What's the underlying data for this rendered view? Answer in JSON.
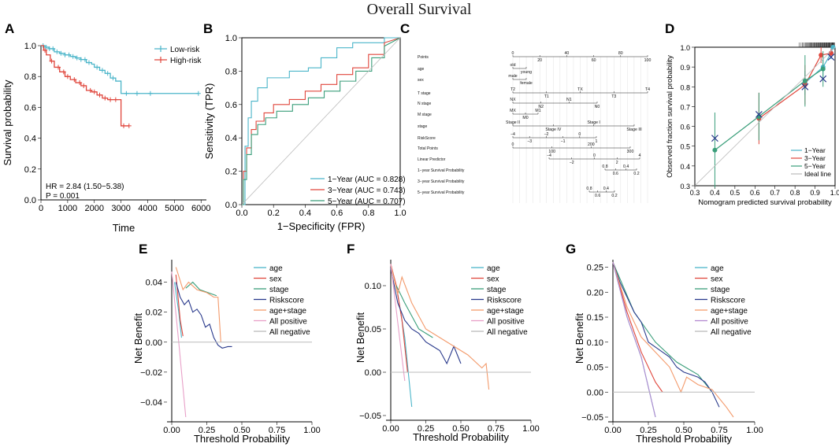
{
  "figure_title": "Overall Survival",
  "panels": {
    "A": "A",
    "B": "B",
    "C": "C",
    "D": "D",
    "E": "E",
    "F": "F",
    "G": "G"
  },
  "chart_data": [
    {
      "id": "A",
      "type": "line",
      "subtype": "kaplan-meier",
      "xlabel": "Time",
      "ylabel": "Survival probability",
      "xlim": [
        0,
        6200
      ],
      "ylim": [
        0,
        1.0
      ],
      "xticks": [
        0,
        1000,
        2000,
        3000,
        4000,
        5000,
        6000
      ],
      "yticks": [
        0.0,
        0.2,
        0.4,
        0.6,
        0.8,
        1.0
      ],
      "annotations": [
        "HR = 2.84 (1.50−5.38)",
        "P = 0.001"
      ],
      "series": [
        {
          "name": "Low-risk",
          "color": "#4bb5c9",
          "x": [
            0,
            150,
            300,
            500,
            700,
            900,
            1100,
            1300,
            1500,
            1700,
            1900,
            2000,
            2200,
            2400,
            2600,
            2800,
            3000,
            3500,
            4000,
            5900
          ],
          "y": [
            1.0,
            0.99,
            0.98,
            0.96,
            0.95,
            0.94,
            0.93,
            0.92,
            0.91,
            0.89,
            0.88,
            0.86,
            0.84,
            0.82,
            0.79,
            0.77,
            0.69,
            0.69,
            0.69,
            0.69
          ],
          "censor_x": [
            80,
            200,
            320,
            450,
            600,
            750,
            900,
            1050,
            1200,
            1350,
            1500,
            1650,
            1800,
            2100,
            2300,
            2500,
            2700,
            3200,
            3600,
            4100,
            5900
          ]
        },
        {
          "name": "High-risk",
          "color": "#e0463c",
          "x": [
            0,
            100,
            200,
            350,
            500,
            700,
            900,
            1100,
            1300,
            1500,
            1700,
            1900,
            2100,
            2300,
            2500,
            2700,
            2900,
            3000,
            3300
          ],
          "y": [
            1.0,
            0.97,
            0.94,
            0.9,
            0.86,
            0.83,
            0.8,
            0.78,
            0.76,
            0.74,
            0.71,
            0.7,
            0.68,
            0.66,
            0.65,
            0.65,
            0.65,
            0.48,
            0.48
          ],
          "censor_x": [
            150,
            400,
            650,
            850,
            1000,
            1250,
            1450,
            1600,
            1850,
            2000,
            2200,
            2400,
            2600,
            2800,
            3100,
            3300
          ]
        }
      ]
    },
    {
      "id": "B",
      "type": "line",
      "subtype": "roc",
      "xlabel": "1−Specificity (FPR)",
      "ylabel": "Sensitivity (TPR)",
      "xlim": [
        0,
        1
      ],
      "ylim": [
        0,
        1
      ],
      "xticks": [
        0.0,
        0.2,
        0.4,
        0.6,
        0.8,
        1.0
      ],
      "yticks": [
        0.0,
        0.2,
        0.4,
        0.6,
        0.8,
        1.0
      ],
      "series": [
        {
          "name": "1−Year (AUC = 0.828)",
          "color": "#4bb5c9",
          "x": [
            0,
            0.02,
            0.02,
            0.04,
            0.04,
            0.06,
            0.06,
            0.1,
            0.1,
            0.16,
            0.16,
            0.3,
            0.3,
            0.42,
            0.42,
            0.5,
            0.5,
            0.6,
            0.6,
            0.7,
            0.7,
            0.9,
            0.9,
            1.0
          ],
          "y": [
            0,
            0,
            0.35,
            0.35,
            0.52,
            0.52,
            0.62,
            0.62,
            0.7,
            0.7,
            0.76,
            0.76,
            0.8,
            0.8,
            0.82,
            0.82,
            0.88,
            0.88,
            0.94,
            0.94,
            0.97,
            0.97,
            1.0,
            1.0
          ]
        },
        {
          "name": "3−Year (AUC = 0.743)",
          "color": "#e0463c",
          "x": [
            0,
            0.01,
            0.01,
            0.03,
            0.03,
            0.06,
            0.06,
            0.09,
            0.09,
            0.14,
            0.14,
            0.2,
            0.2,
            0.3,
            0.3,
            0.4,
            0.4,
            0.5,
            0.5,
            0.6,
            0.6,
            0.7,
            0.7,
            0.8,
            0.8,
            0.9,
            0.9,
            1.0
          ],
          "y": [
            0,
            0,
            0.2,
            0.2,
            0.34,
            0.34,
            0.45,
            0.45,
            0.5,
            0.5,
            0.55,
            0.55,
            0.6,
            0.6,
            0.63,
            0.63,
            0.68,
            0.68,
            0.72,
            0.72,
            0.78,
            0.78,
            0.82,
            0.82,
            0.9,
            0.9,
            0.97,
            1.0
          ]
        },
        {
          "name": "5−Year (AUC = 0.707)",
          "color": "#3a9e7a",
          "x": [
            0,
            0.01,
            0.01,
            0.03,
            0.03,
            0.06,
            0.06,
            0.1,
            0.1,
            0.15,
            0.15,
            0.22,
            0.22,
            0.32,
            0.32,
            0.42,
            0.42,
            0.52,
            0.52,
            0.62,
            0.62,
            0.72,
            0.72,
            0.82,
            0.82,
            0.9,
            0.9,
            1.0
          ],
          "y": [
            0,
            0,
            0.15,
            0.15,
            0.3,
            0.3,
            0.42,
            0.42,
            0.48,
            0.48,
            0.52,
            0.52,
            0.56,
            0.56,
            0.6,
            0.6,
            0.64,
            0.64,
            0.68,
            0.68,
            0.74,
            0.74,
            0.8,
            0.8,
            0.88,
            0.88,
            0.95,
            1.0
          ]
        },
        {
          "name": "reference",
          "color": "#bbbbbb",
          "x": [
            0,
            1
          ],
          "y": [
            0,
            1
          ]
        }
      ]
    },
    {
      "id": "C",
      "type": "nomogram",
      "rows": [
        {
          "label": "Points",
          "ticks": [
            "0",
            "20",
            "40",
            "60",
            "80",
            "100"
          ]
        },
        {
          "label": "age",
          "ticks": [
            "old",
            "young"
          ]
        },
        {
          "label": "sex",
          "ticks": [
            "male",
            "female"
          ]
        },
        {
          "label": "T stage",
          "ticks": [
            "T2",
            "T1",
            "TX",
            "T3",
            "T4"
          ]
        },
        {
          "label": "N stage",
          "ticks": [
            "NX",
            "N2",
            "N1",
            "N0"
          ]
        },
        {
          "label": "M stage",
          "ticks": [
            "MX",
            "M0",
            "M1"
          ]
        },
        {
          "label": "stage",
          "ticks": [
            "Stage II",
            "Stage IV",
            "Stage I",
            "Stage III"
          ]
        },
        {
          "label": "RiskScore",
          "ticks": [
            "−4",
            "−3",
            "−2",
            "−1",
            "0",
            "1"
          ]
        },
        {
          "label": "Total Points",
          "ticks": [
            "0",
            "100",
            "200",
            "300"
          ]
        },
        {
          "label": "Linear Predictor",
          "ticks": [
            "−4",
            "−2",
            "0",
            "2",
            "4"
          ]
        },
        {
          "label": "1−year Survival Probability",
          "ticks": [
            "0.8",
            "0.6",
            "0.4",
            "0.2"
          ]
        },
        {
          "label": "3−year Survival Probability",
          "ticks": []
        },
        {
          "label": "5−year Survival Probability",
          "ticks": [
            "0.8",
            "0.6",
            "0.4",
            "0.2"
          ]
        }
      ]
    },
    {
      "id": "D",
      "type": "line",
      "subtype": "calibration",
      "xlabel": "Nomogram predicted survival probability",
      "ylabel": "Observed fraction survival probability",
      "xlim": [
        0.3,
        1.0
      ],
      "ylim": [
        0.3,
        1.0
      ],
      "xticks": [
        0.3,
        0.4,
        0.5,
        0.6,
        0.7,
        0.8,
        0.9,
        1.0
      ],
      "yticks": [
        0.3,
        0.4,
        0.5,
        0.6,
        0.7,
        0.8,
        0.9,
        1.0
      ],
      "series": [
        {
          "name": "1−Year",
          "color": "#4bb5c9",
          "x": [
            0.85,
            0.94,
            0.98,
            0.99
          ],
          "y": [
            0.82,
            0.9,
            0.97,
            1.0
          ],
          "err": [
            0.06,
            0.05,
            0.03,
            0.01
          ]
        },
        {
          "name": "3−Year",
          "color": "#e0463c",
          "x": [
            0.62,
            0.85,
            0.93,
            0.98
          ],
          "y": [
            0.64,
            0.81,
            0.96,
            0.97
          ],
          "err": [
            0.13,
            0.1,
            0.04,
            0.02
          ]
        },
        {
          "name": "5−Year",
          "color": "#3a9e7a",
          "x": [
            0.4,
            0.62,
            0.85,
            0.94
          ],
          "y": [
            0.48,
            0.65,
            0.83,
            0.89
          ],
          "err": [
            0.19,
            0.12,
            0.13,
            0.09
          ]
        },
        {
          "name": "Ideal line",
          "color": "#bbbbbb",
          "x": [
            0.3,
            1.0
          ],
          "y": [
            0.3,
            1.0
          ]
        }
      ]
    },
    {
      "id": "E",
      "type": "line",
      "subtype": "decision-curve",
      "xlabel": "Threshold Probability",
      "ylabel": "Net Benefit",
      "xlim": [
        0,
        1
      ],
      "ylim": [
        -0.05,
        0.055
      ],
      "xticks": [
        0.0,
        0.25,
        0.5,
        0.75,
        1.0
      ],
      "yticks": [
        -0.04,
        -0.02,
        0.0,
        0.02,
        0.04
      ],
      "series": [
        {
          "name": "age",
          "color": "#4bb5c9",
          "x": [
            0.02,
            0.05,
            0.07
          ],
          "y": [
            0.04,
            0.02,
            0.003
          ]
        },
        {
          "name": "sex",
          "color": "#e0463c",
          "x": [
            0.03,
            0.06,
            0.08
          ],
          "y": [
            0.045,
            0.015,
            0.004
          ]
        },
        {
          "name": "stage",
          "color": "#3a9e7a",
          "x": [
            0.1,
            0.15,
            0.2,
            0.32
          ],
          "y": [
            0.036,
            0.04,
            0.035,
            0.031
          ]
        },
        {
          "name": "Riskscore",
          "color": "#2a3a8c",
          "x": [
            0.03,
            0.06,
            0.09,
            0.12,
            0.15,
            0.18,
            0.21,
            0.24,
            0.27,
            0.3,
            0.33,
            0.36,
            0.4,
            0.43
          ],
          "y": [
            0.04,
            0.03,
            0.025,
            0.028,
            0.02,
            0.022,
            0.018,
            0.01,
            0.012,
            0.003,
            -0.002,
            -0.004,
            -0.003,
            -0.003
          ]
        },
        {
          "name": "age+stage",
          "color": "#f39a6b",
          "x": [
            0.03,
            0.08,
            0.12,
            0.18,
            0.25,
            0.3,
            0.33,
            0.35
          ],
          "y": [
            0.05,
            0.035,
            0.04,
            0.035,
            0.033,
            0.03,
            0.03,
            0.0
          ]
        },
        {
          "name": "All positive",
          "color": "#e8a0c8",
          "x": [
            0.0,
            0.05,
            0.1
          ],
          "y": [
            0.047,
            0.0,
            -0.05
          ]
        },
        {
          "name": "All negative",
          "color": "#bbbbbb",
          "x": [
            0.0,
            1.0
          ],
          "y": [
            0.0,
            0.0
          ]
        }
      ]
    },
    {
      "id": "F",
      "type": "line",
      "subtype": "decision-curve",
      "xlabel": "Threshold Probability",
      "ylabel": "Net Benefit",
      "xlim": [
        0,
        1
      ],
      "ylim": [
        -0.05,
        0.13
      ],
      "xticks": [
        0.0,
        0.25,
        0.5,
        0.75,
        1.0
      ],
      "yticks": [
        -0.05,
        0.0,
        0.05,
        0.1
      ],
      "series": [
        {
          "name": "age",
          "color": "#4bb5c9",
          "x": [
            0.0,
            0.05,
            0.1,
            0.15
          ],
          "y": [
            0.125,
            0.09,
            0.04,
            -0.04
          ]
        },
        {
          "name": "sex",
          "color": "#e0463c",
          "x": [
            0.0,
            0.04,
            0.08,
            0.12
          ],
          "y": [
            0.125,
            0.1,
            0.06,
            0.0
          ]
        },
        {
          "name": "stage",
          "color": "#3a9e7a",
          "x": [
            0.04,
            0.1,
            0.2,
            0.3
          ],
          "y": [
            0.1,
            0.08,
            0.05,
            0.04
          ]
        },
        {
          "name": "Riskscore",
          "color": "#2a3a8c",
          "x": [
            0.0,
            0.05,
            0.1,
            0.15,
            0.2,
            0.25,
            0.3,
            0.35,
            0.4,
            0.45,
            0.5
          ],
          "y": [
            0.12,
            0.08,
            0.06,
            0.05,
            0.045,
            0.035,
            0.03,
            0.025,
            0.01,
            0.03,
            0.01
          ]
        },
        {
          "name": "age+stage",
          "color": "#f39a6b",
          "x": [
            0.0,
            0.05,
            0.08,
            0.15,
            0.25,
            0.35,
            0.45,
            0.55,
            0.65,
            0.68,
            0.7
          ],
          "y": [
            0.125,
            0.09,
            0.11,
            0.08,
            0.05,
            0.04,
            0.03,
            0.02,
            0.005,
            0.01,
            -0.02
          ]
        },
        {
          "name": "All positive",
          "color": "#e8a0c8",
          "x": [
            0.0,
            0.1
          ],
          "y": [
            0.125,
            -0.01
          ]
        },
        {
          "name": "All negative",
          "color": "#bbbbbb",
          "x": [
            0.0,
            1.0
          ],
          "y": [
            0.0,
            0.0
          ]
        }
      ]
    },
    {
      "id": "G",
      "type": "line",
      "subtype": "decision-curve",
      "xlabel": "Threshold Probability",
      "ylabel": "Net Benefit",
      "xlim": [
        0,
        1
      ],
      "ylim": [
        -0.05,
        0.265
      ],
      "xticks": [
        0.0,
        0.25,
        0.5,
        0.75,
        1.0
      ],
      "yticks": [
        -0.05,
        0.0,
        0.05,
        0.1,
        0.15,
        0.2,
        0.25
      ],
      "series": [
        {
          "name": "age",
          "color": "#4bb5c9",
          "x": [
            0.0,
            0.1,
            0.2,
            0.3
          ],
          "y": [
            0.26,
            0.15,
            0.07,
            -0.05
          ]
        },
        {
          "name": "sex",
          "color": "#e0463c",
          "x": [
            0.0,
            0.1,
            0.2,
            0.3,
            0.35
          ],
          "y": [
            0.26,
            0.16,
            0.08,
            0.02,
            0.0
          ]
        },
        {
          "name": "stage",
          "color": "#3a9e7a",
          "x": [
            0.0,
            0.15,
            0.3,
            0.45,
            0.6,
            0.7
          ],
          "y": [
            0.26,
            0.16,
            0.1,
            0.06,
            0.035,
            0.0
          ]
        },
        {
          "name": "Riskscore",
          "color": "#2a3a8c",
          "x": [
            0.0,
            0.05,
            0.1,
            0.15,
            0.2,
            0.25,
            0.3,
            0.35,
            0.4,
            0.45,
            0.5,
            0.55,
            0.6,
            0.65,
            0.7,
            0.75
          ],
          "y": [
            0.26,
            0.22,
            0.19,
            0.16,
            0.14,
            0.1,
            0.09,
            0.08,
            0.07,
            0.05,
            0.04,
            0.035,
            0.03,
            0.02,
            0.0,
            -0.03
          ]
        },
        {
          "name": "age+stage",
          "color": "#f39a6b",
          "x": [
            0.0,
            0.1,
            0.2,
            0.3,
            0.4,
            0.48,
            0.52,
            0.6,
            0.7,
            0.8,
            0.85
          ],
          "y": [
            0.26,
            0.17,
            0.11,
            0.08,
            0.05,
            0.0,
            0.03,
            0.015,
            0.005,
            -0.03,
            -0.05
          ]
        },
        {
          "name": "All positive",
          "color": "#b48ad0",
          "x": [
            0.0,
            0.1,
            0.2,
            0.3
          ],
          "y": [
            0.26,
            0.15,
            0.07,
            -0.05
          ]
        },
        {
          "name": "All negative",
          "color": "#bbbbbb",
          "x": [
            0.0,
            1.0
          ],
          "y": [
            0.0,
            0.0
          ]
        }
      ]
    }
  ]
}
